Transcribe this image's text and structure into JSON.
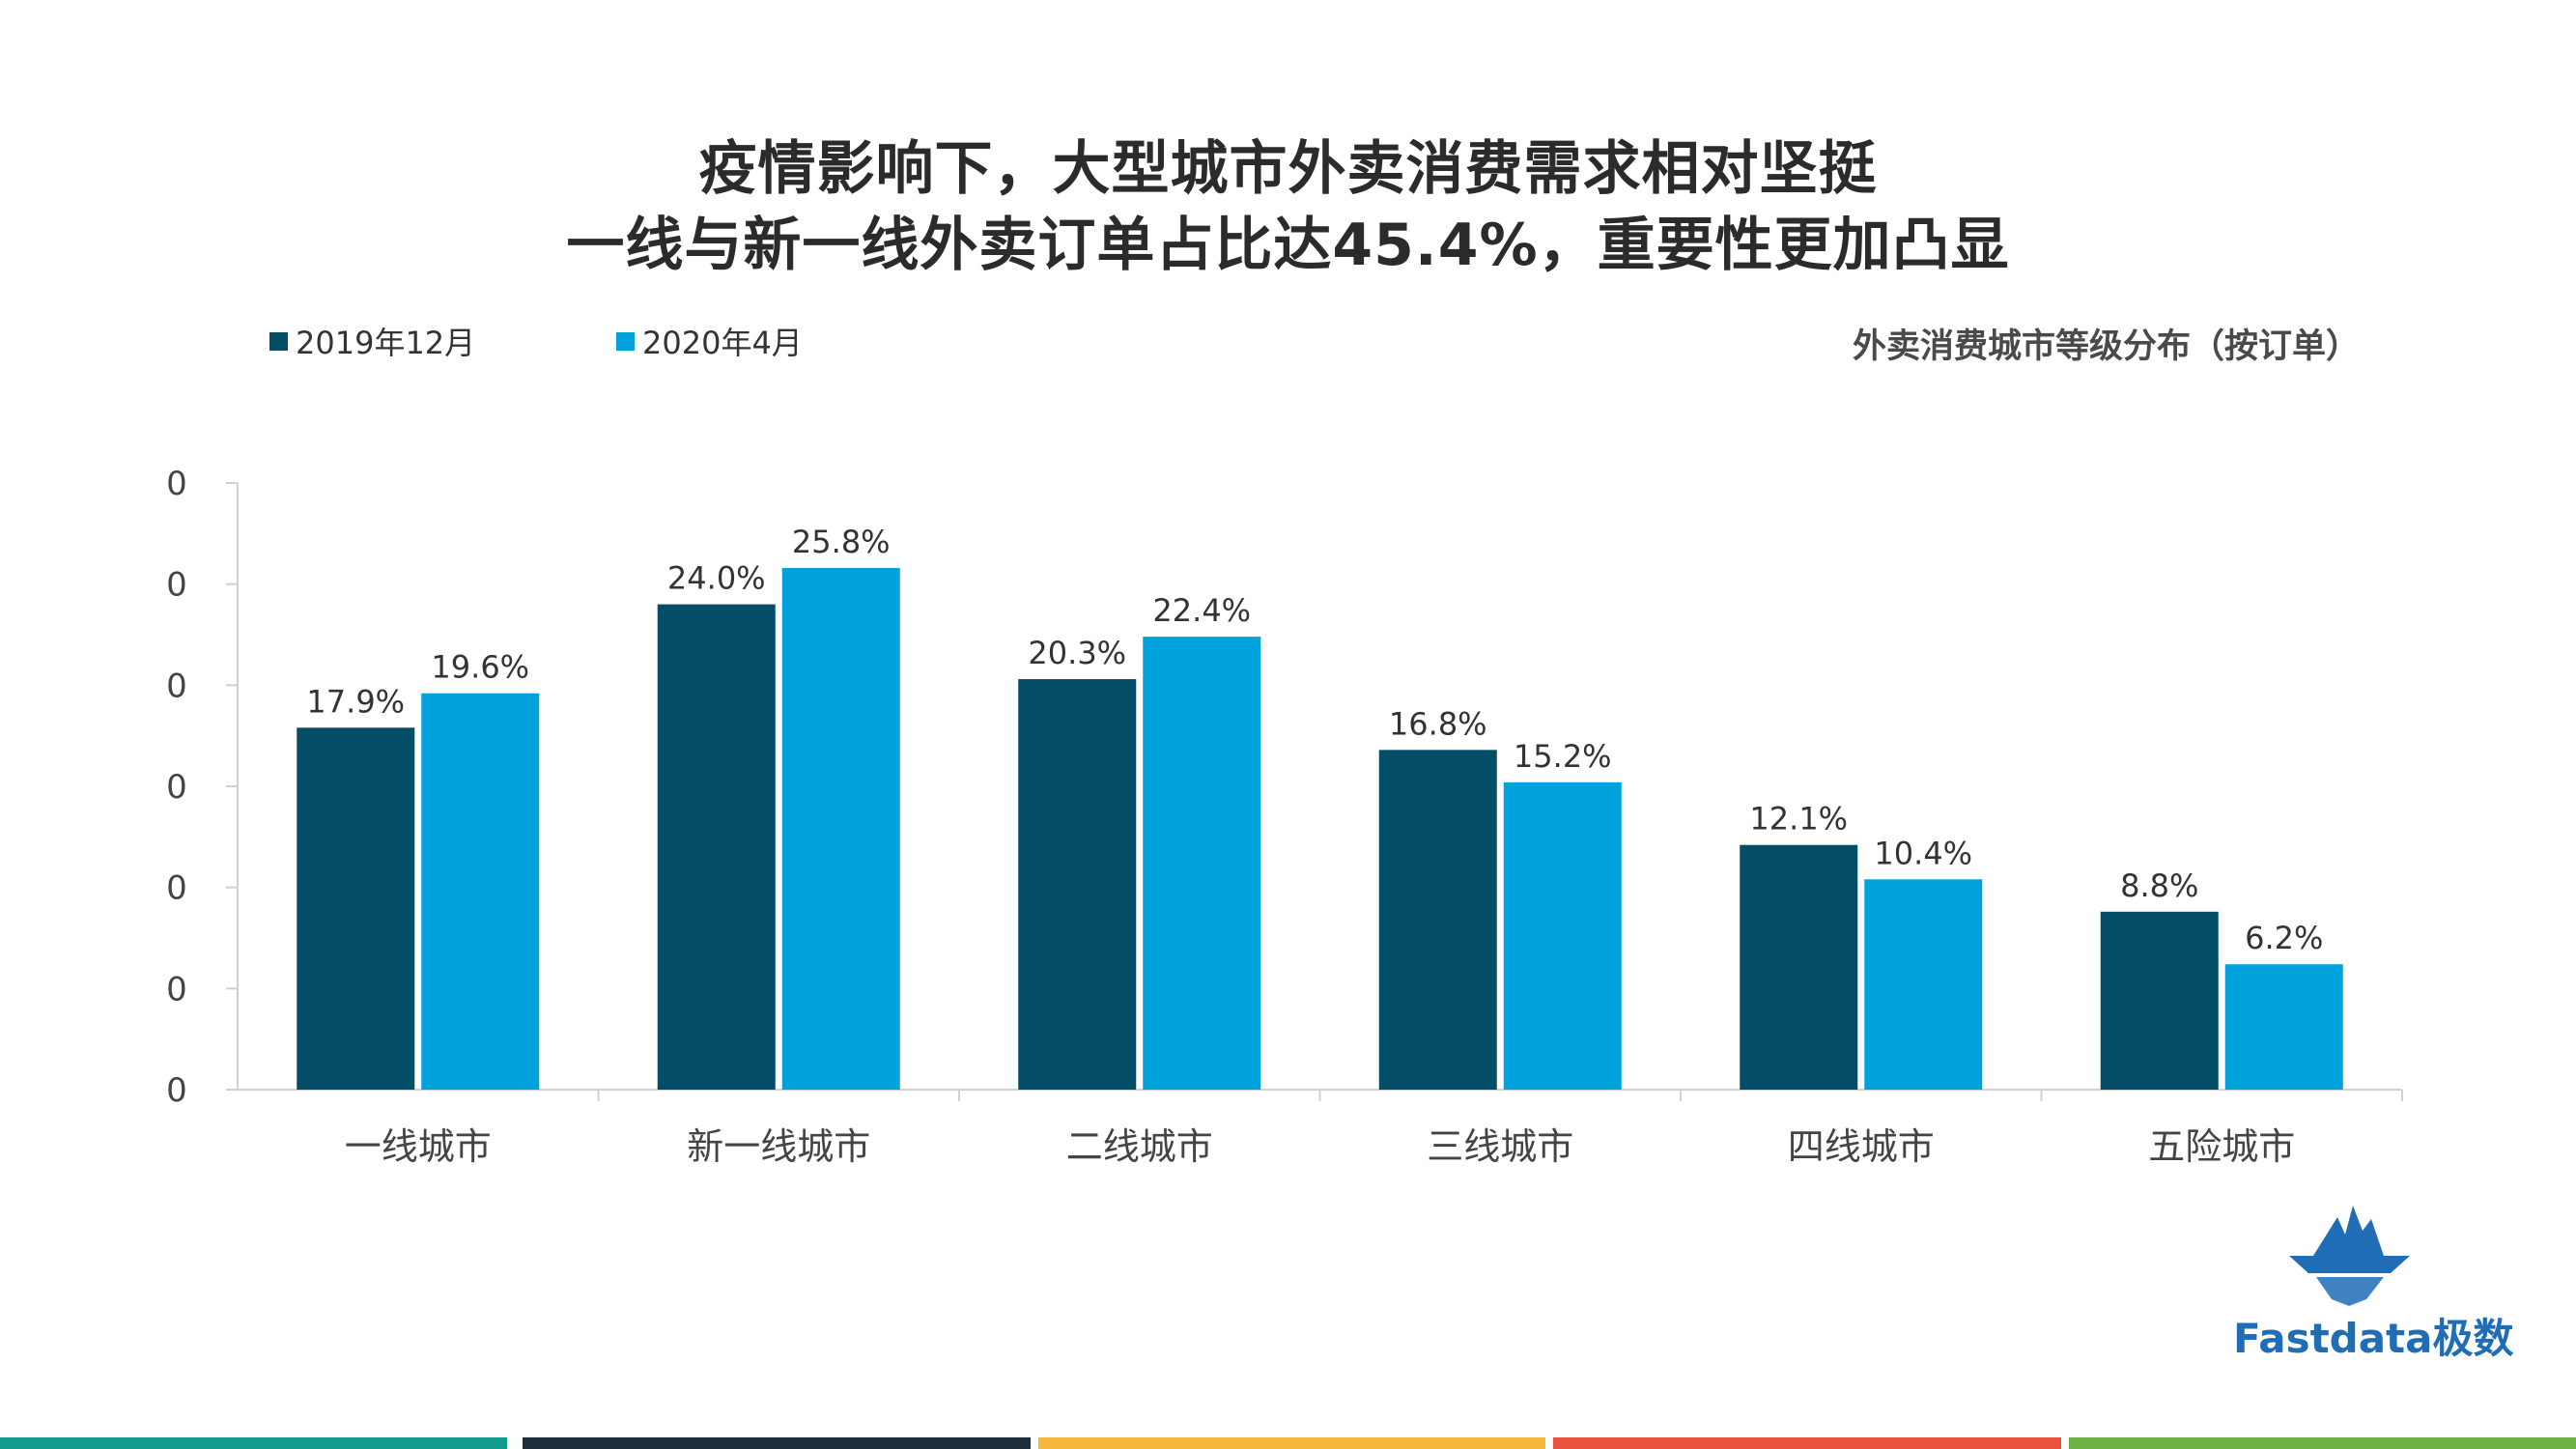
{
  "title": {
    "line1": "疫情影响下，大型城市外卖消费需求相对坚挺",
    "line2": "一线与新一线外卖订单占比达45.4%，重要性更加凸显"
  },
  "subtitle": "外卖消费城市等级分布（按订单）",
  "logo_text": "Fastdata极数",
  "colors": {
    "series_2019": "#034d66",
    "series_2020": "#00a2db",
    "strips": [
      "#139b8c",
      "#1f2d3a",
      "#f3b83d",
      "#e8523f",
      "#6db043"
    ]
  },
  "chart_data": {
    "type": "bar",
    "categories": [
      "一线城市",
      "新一线城市",
      "二线城市",
      "三线城市",
      "四线城市",
      "五险城市"
    ],
    "series": [
      {
        "name": "2019年12月",
        "values": [
          17.9,
          24.0,
          20.3,
          16.8,
          12.1,
          8.8
        ],
        "labels": [
          "17.9%",
          "24.0%",
          "20.3%",
          "16.8%",
          "12.1%",
          "8.8%"
        ]
      },
      {
        "name": "2020年4月",
        "values": [
          19.6,
          25.8,
          22.4,
          15.2,
          10.4,
          6.2
        ],
        "labels": [
          "19.6%",
          "25.8%",
          "22.4%",
          "15.2%",
          "10.4%",
          "6.2%"
        ]
      }
    ],
    "ylim": [
      0,
      30
    ],
    "yticks": [
      0,
      5,
      10,
      15,
      20,
      25,
      30
    ],
    "ytick_labels": [
      "0",
      "0",
      "0",
      "0",
      "0",
      "0",
      "0"
    ],
    "legend_position": "top-left"
  }
}
